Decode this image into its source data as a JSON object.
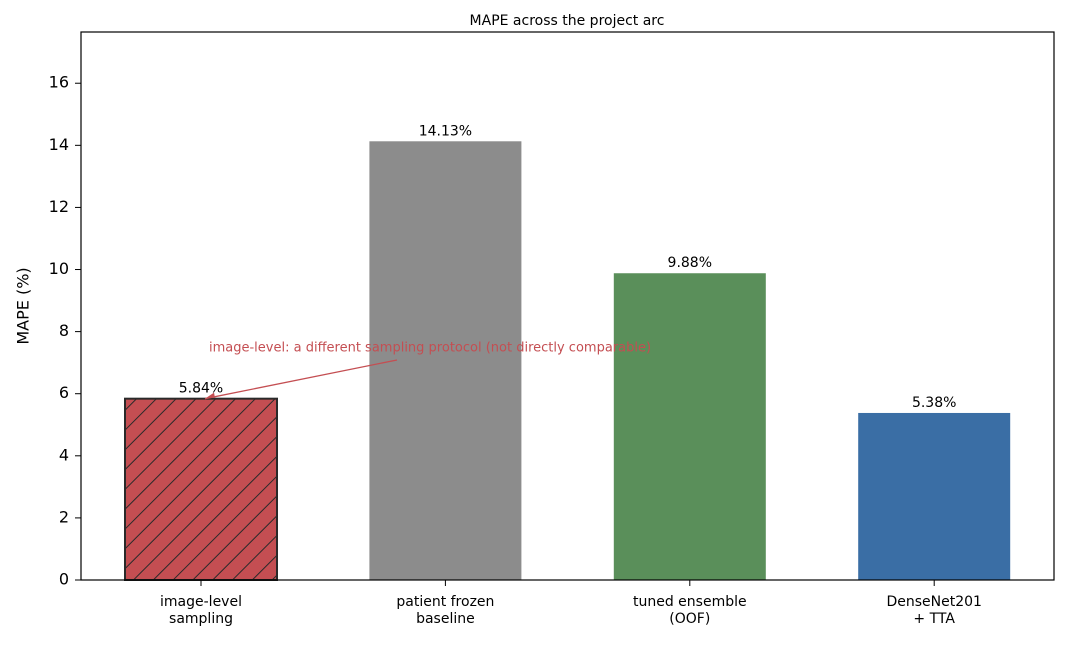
{
  "chart_data": {
    "type": "bar",
    "title": "MAPE across the project arc",
    "y_label": "MAPE (%)",
    "categories": [
      "image-level\nsampling",
      "patient frozen\nbaseline",
      "tuned ensemble\n(OOF)",
      "DenseNet201\n+ TTA"
    ],
    "values": [
      5.84,
      14.13,
      9.88,
      5.38
    ],
    "value_labels": [
      "5.84%",
      "14.13%",
      "9.88%",
      "5.38%"
    ],
    "colors": [
      "#c44e52",
      "#8c8c8c",
      "#5a8f5a",
      "#3a6ea5"
    ],
    "hatched": [
      true,
      false,
      false,
      false
    ],
    "ylim": [
      0,
      17.65
    ],
    "yticks": [
      0,
      2,
      4,
      6,
      8,
      10,
      12,
      14,
      16
    ],
    "annotation": "image-level: a different sampling protocol (not directly comparable)"
  }
}
